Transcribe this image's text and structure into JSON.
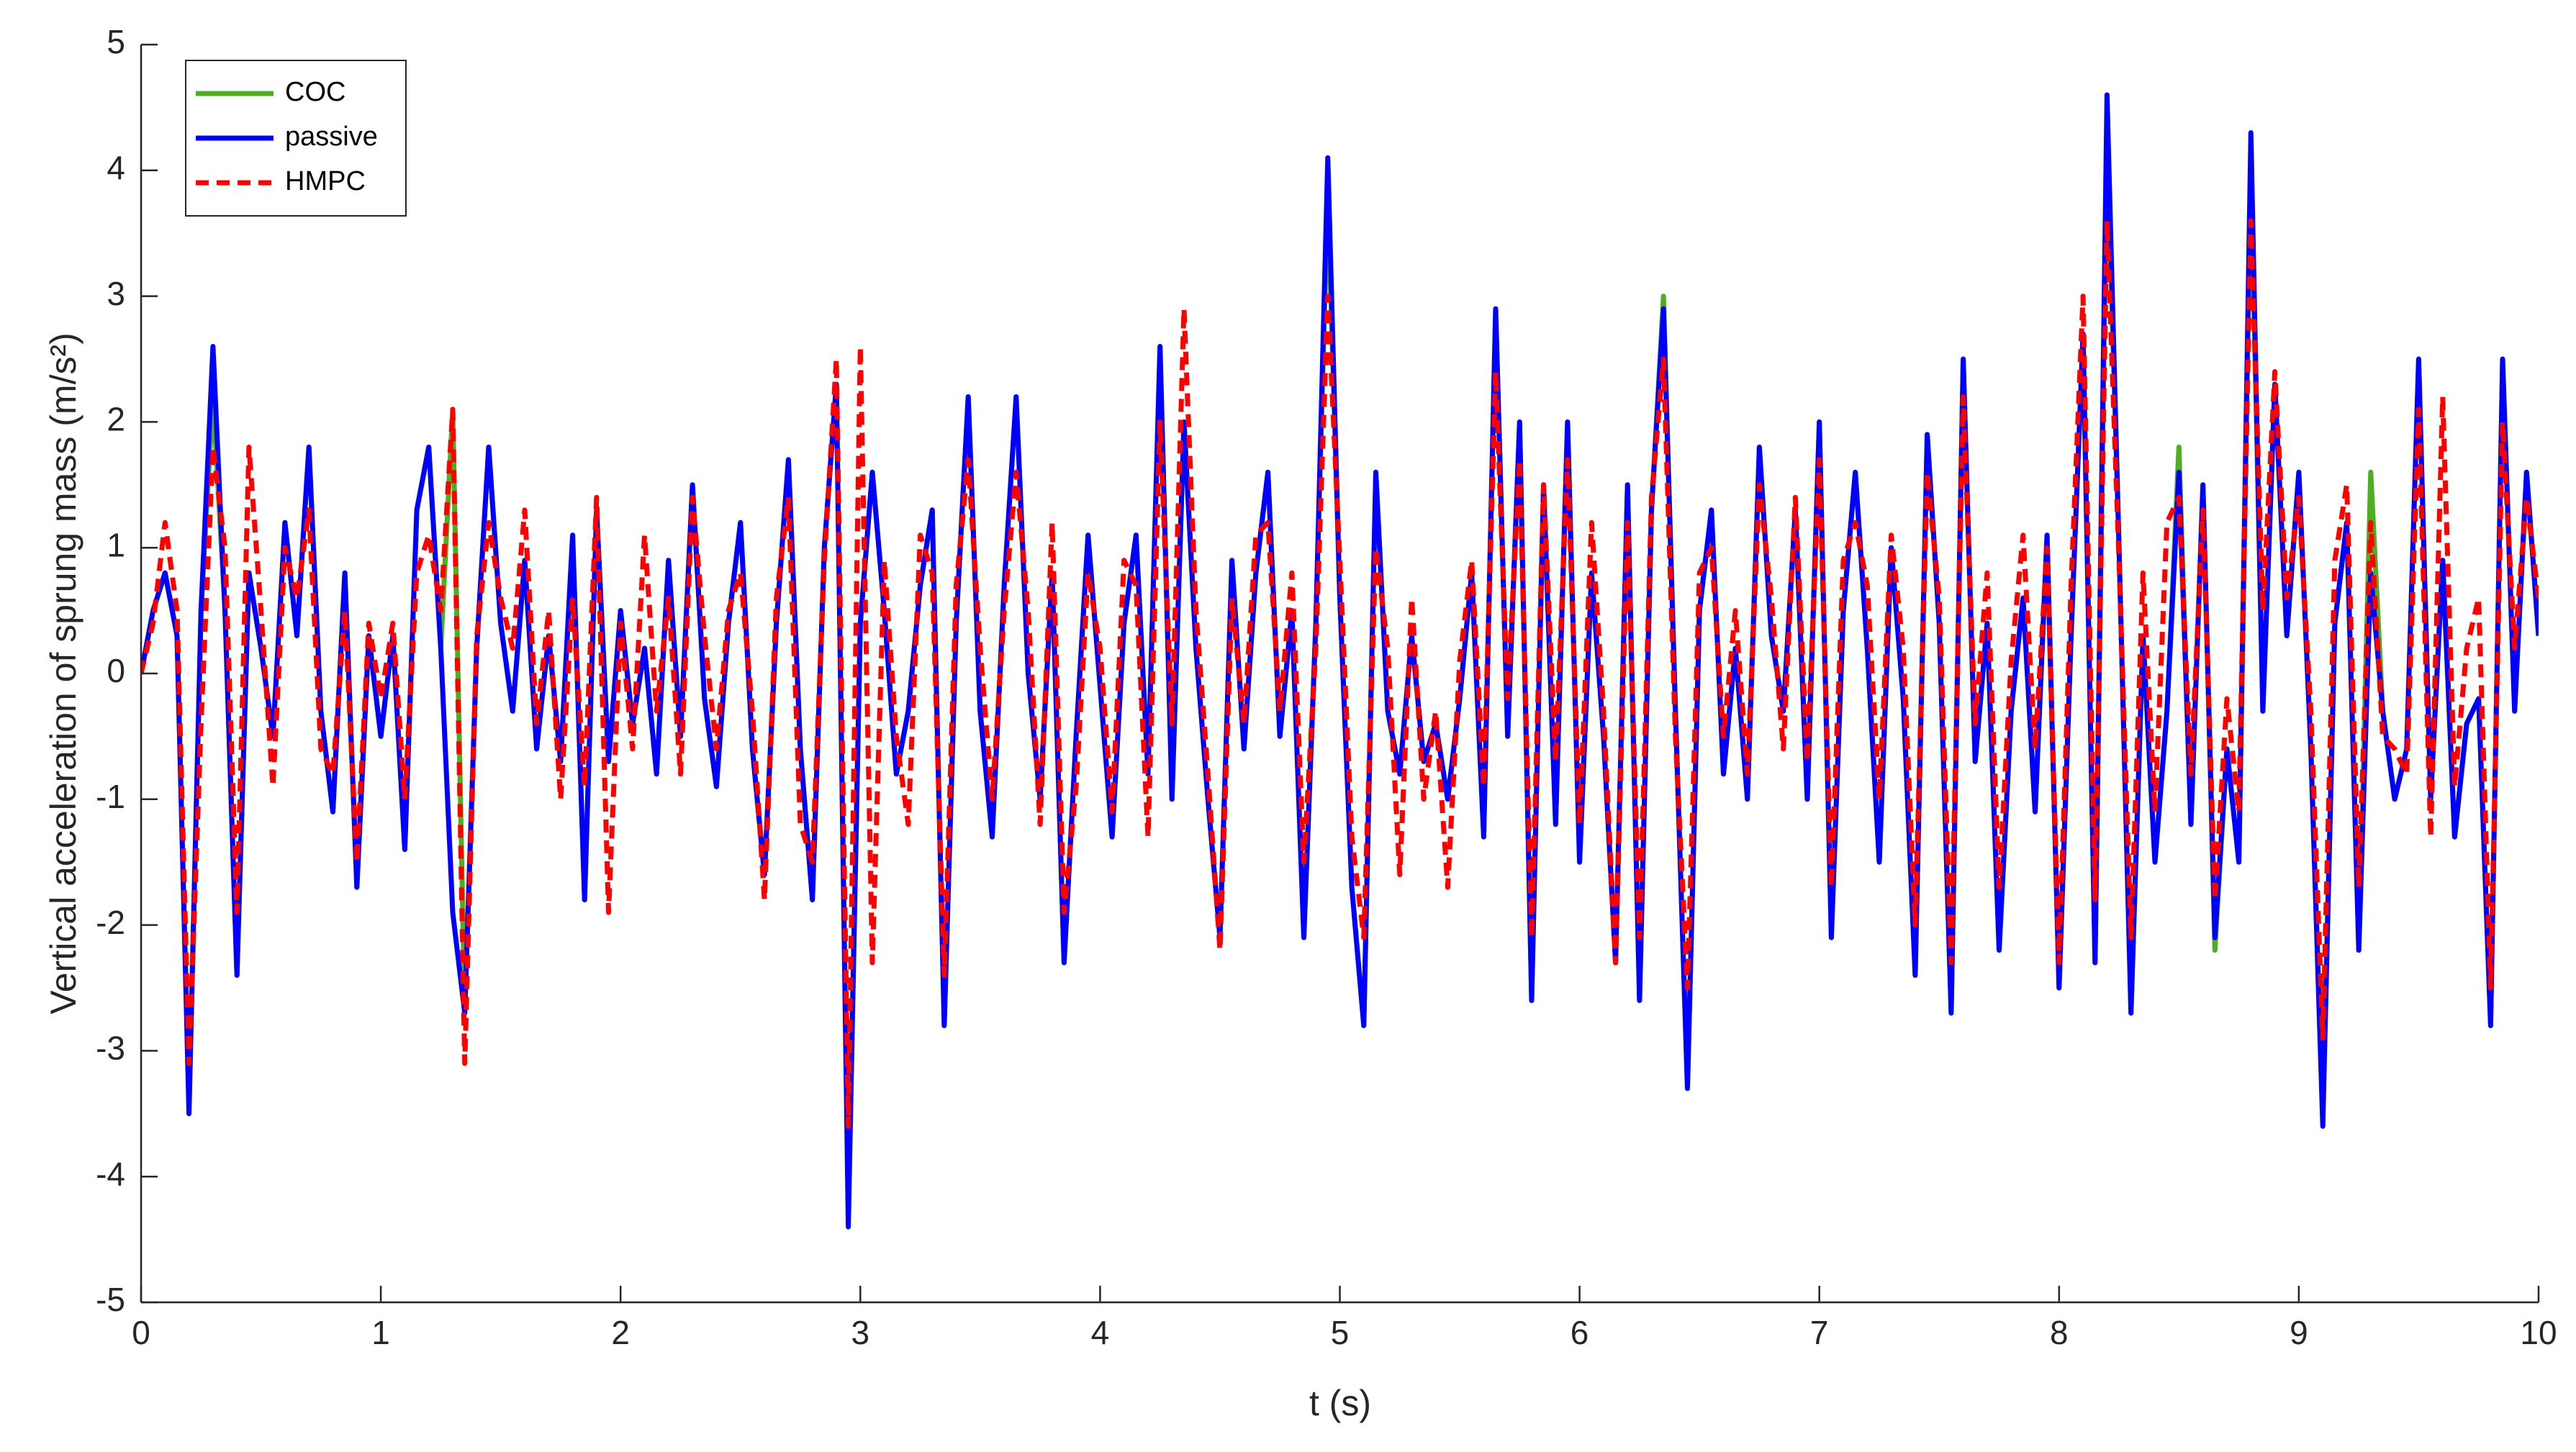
{
  "chart_data": {
    "type": "line",
    "xlabel": "t (s)",
    "ylabel": "Vertical acceleration of sprung mass (m/s²)",
    "xlim": [
      0,
      10
    ],
    "xticks": [
      0,
      1,
      2,
      3,
      4,
      5,
      6,
      7,
      8,
      9,
      10
    ],
    "ylim": [
      -5,
      5
    ],
    "yticks": [
      -5,
      -4,
      -3,
      -2,
      -1,
      0,
      1,
      2,
      3,
      4,
      5
    ],
    "grid": false,
    "legend": "upper left",
    "x": [
      0,
      0.05,
      0.1,
      0.15,
      0.2,
      0.25,
      0.3,
      0.35,
      0.4,
      0.45,
      0.5,
      0.55,
      0.6,
      0.65,
      0.7,
      0.75,
      0.8,
      0.85,
      0.9,
      0.95,
      1,
      1.05,
      1.1,
      1.15,
      1.2,
      1.25,
      1.3,
      1.35,
      1.4,
      1.45,
      1.5,
      1.55,
      1.6,
      1.65,
      1.7,
      1.75,
      1.8,
      1.85,
      1.9,
      1.95,
      2,
      2.05,
      2.1,
      2.15,
      2.2,
      2.25,
      2.3,
      2.35,
      2.4,
      2.45,
      2.5,
      2.55,
      2.6,
      2.65,
      2.7,
      2.75,
      2.8,
      2.85,
      2.9,
      2.95,
      3,
      3.05,
      3.1,
      3.15,
      3.2,
      3.25,
      3.3,
      3.35,
      3.4,
      3.45,
      3.5,
      3.55,
      3.6,
      3.65,
      3.7,
      3.75,
      3.8,
      3.85,
      3.9,
      3.95,
      4,
      4.05,
      4.1,
      4.15,
      4.2,
      4.25,
      4.3,
      4.35,
      4.4,
      4.45,
      4.5,
      4.55,
      4.6,
      4.65,
      4.7,
      4.75,
      4.8,
      4.85,
      4.9,
      4.95,
      5,
      5.05,
      5.1,
      5.15,
      5.2,
      5.25,
      5.3,
      5.35,
      5.4,
      5.45,
      5.5,
      5.55,
      5.6,
      5.65,
      5.7,
      5.75,
      5.8,
      5.85,
      5.9,
      5.95,
      6,
      6.05,
      6.1,
      6.15,
      6.2,
      6.25,
      6.3,
      6.35,
      6.4,
      6.45,
      6.5,
      6.55,
      6.6,
      6.65,
      6.7,
      6.75,
      6.8,
      6.85,
      6.9,
      6.95,
      7,
      7.05,
      7.1,
      7.15,
      7.2,
      7.25,
      7.3,
      7.35,
      7.4,
      7.45,
      7.5,
      7.55,
      7.6,
      7.65,
      7.7,
      7.75,
      7.8,
      7.85,
      7.9,
      7.95,
      8,
      8.05,
      8.1,
      8.15,
      8.2,
      8.25,
      8.3,
      8.35,
      8.4,
      8.45,
      8.5,
      8.55,
      8.6,
      8.65,
      8.7,
      8.75,
      8.8,
      8.85,
      8.9,
      8.95,
      9,
      9.05,
      9.1,
      9.15,
      9.2,
      9.25,
      9.3,
      9.35,
      9.4,
      9.45,
      9.5,
      9.55,
      9.6,
      9.65,
      9.7,
      9.75,
      9.8,
      9.85,
      9.9,
      9.95,
      10
    ],
    "series": [
      {
        "name": "COC",
        "color": "#4daf1f",
        "linestyle": "solid",
        "values": [
          0,
          0.5,
          0.8,
          0.3,
          -3.4,
          0.5,
          2.2,
          0.5,
          -2.4,
          0.8,
          0.2,
          -0.5,
          1.2,
          0.3,
          1.8,
          -0.3,
          -1.1,
          0.8,
          -1.7,
          0.3,
          -0.5,
          0.3,
          -1.4,
          1.3,
          1.8,
          0.2,
          2.1,
          -2.7,
          0.2,
          1.8,
          0.4,
          -0.3,
          0.9,
          -0.6,
          0.3,
          -0.7,
          1.1,
          -1.8,
          1.3,
          -0.7,
          0.5,
          -0.4,
          0.2,
          -0.8,
          0.9,
          -0.5,
          1.5,
          -0.2,
          -0.9,
          0.4,
          1.2,
          -0.6,
          -1.6,
          0.4,
          1.7,
          -0.6,
          -1.8,
          1.0,
          2.3,
          -4.2,
          0.4,
          1.6,
          0.5,
          -0.8,
          -0.3,
          0.7,
          1.3,
          -2.8,
          0.4,
          2.2,
          -0.3,
          -1.3,
          0.7,
          2.2,
          0.0,
          -1.0,
          0.8,
          -2.3,
          -0.5,
          1.1,
          -0.1,
          -1.3,
          0.4,
          1.1,
          -0.8,
          2.6,
          -1.0,
          2.0,
          0.2,
          -1.0,
          -2.1,
          0.9,
          -0.6,
          0.8,
          1.6,
          -0.5,
          0.5,
          -2.1,
          0.4,
          3.8,
          0.6,
          -1.7,
          -2.8,
          1.6,
          -0.3,
          -0.8,
          0.3,
          -0.7,
          -0.4,
          -1.0,
          -0.2,
          0.8,
          -1.3,
          2.9,
          -0.5,
          2.0,
          -2.6,
          1.5,
          -1.2,
          2.0,
          -1.5,
          0.8,
          -0.5,
          -2.3,
          1.5,
          -2.6,
          1.3,
          3.0,
          -0.3,
          -3.3,
          0.5,
          1.3,
          -0.8,
          0.2,
          -1.0,
          1.8,
          0.3,
          -0.3,
          1.3,
          -1.0,
          2.0,
          -2.1,
          0.5,
          1.6,
          0.2,
          -1.5,
          1.0,
          -0.2,
          -2.4,
          1.9,
          0.4,
          -2.7,
          2.5,
          -0.7,
          0.4,
          -2.2,
          -0.3,
          0.6,
          -1.1,
          1.1,
          -2.5,
          0.3,
          2.7,
          -2.3,
          4.2,
          1.0,
          -2.7,
          0.3,
          -1.5,
          -0.3,
          1.8,
          -1.2,
          1.5,
          -2.2,
          -0.6,
          -1.5,
          4.0,
          -0.3,
          2.3,
          0.3,
          1.6,
          -0.6,
          -3.4,
          0.4,
          1.2,
          -2.2,
          1.6,
          -0.3,
          -1.0,
          -0.6,
          2.5,
          -1.0,
          0.9,
          -1.3,
          -0.4,
          -0.2,
          -2.8,
          2.5,
          -0.3,
          1.6,
          0.3
        ]
      },
      {
        "name": "passive",
        "color": "#0000ff",
        "linestyle": "solid",
        "values": [
          0,
          0.5,
          0.8,
          0.3,
          -3.5,
          0.5,
          2.6,
          0.5,
          -2.4,
          0.8,
          0.2,
          -0.5,
          1.2,
          0.3,
          1.8,
          -0.3,
          -1.1,
          0.8,
          -1.7,
          0.3,
          -0.5,
          0.3,
          -1.4,
          1.3,
          1.8,
          0.2,
          -1.9,
          -2.7,
          0.2,
          1.8,
          0.4,
          -0.3,
          0.9,
          -0.6,
          0.3,
          -0.7,
          1.1,
          -1.8,
          1.3,
          -0.7,
          0.5,
          -0.4,
          0.2,
          -0.8,
          0.9,
          -0.5,
          1.5,
          -0.2,
          -0.9,
          0.4,
          1.2,
          -0.6,
          -1.6,
          0.4,
          1.7,
          -0.6,
          -1.8,
          1.0,
          2.3,
          -4.4,
          0.4,
          1.6,
          0.5,
          -0.8,
          -0.3,
          0.7,
          1.3,
          -2.8,
          0.4,
          2.2,
          -0.3,
          -1.3,
          0.7,
          2.2,
          0.0,
          -1.0,
          0.8,
          -2.3,
          -0.5,
          1.1,
          -0.1,
          -1.3,
          0.4,
          1.1,
          -0.8,
          2.6,
          -1.0,
          2.0,
          0.2,
          -1.0,
          -2.1,
          0.9,
          -0.6,
          0.8,
          1.6,
          -0.5,
          0.5,
          -2.1,
          0.4,
          4.1,
          0.6,
          -1.7,
          -2.8,
          1.6,
          -0.3,
          -0.8,
          0.3,
          -0.7,
          -0.4,
          -1.0,
          -0.2,
          0.8,
          -1.3,
          2.9,
          -0.5,
          2.0,
          -2.6,
          1.5,
          -1.2,
          2.0,
          -1.5,
          0.8,
          -0.5,
          -2.3,
          1.5,
          -2.6,
          1.3,
          2.9,
          -0.3,
          -3.3,
          0.5,
          1.3,
          -0.8,
          0.2,
          -1.0,
          1.8,
          0.3,
          -0.3,
          1.3,
          -1.0,
          2.0,
          -2.1,
          0.5,
          1.6,
          0.2,
          -1.5,
          1.0,
          -0.2,
          -2.4,
          1.9,
          0.4,
          -2.7,
          2.5,
          -0.7,
          0.4,
          -2.2,
          -0.3,
          0.6,
          -1.1,
          1.1,
          -2.5,
          0.3,
          2.7,
          -2.3,
          4.6,
          1.0,
          -2.7,
          0.3,
          -1.5,
          -0.3,
          1.6,
          -1.2,
          1.5,
          -2.1,
          -0.6,
          -1.5,
          4.3,
          -0.3,
          2.3,
          0.3,
          1.6,
          -0.6,
          -3.6,
          0.4,
          1.2,
          -2.2,
          0.8,
          -0.3,
          -1.0,
          -0.6,
          2.5,
          -1.0,
          0.9,
          -1.3,
          -0.4,
          -0.2,
          -2.8,
          2.5,
          -0.3,
          1.6,
          0.3
        ]
      },
      {
        "name": "HMPC",
        "color": "#ff0000",
        "linestyle": "dashed",
        "values": [
          0,
          0.4,
          1.2,
          0.5,
          -3.1,
          -0.4,
          1.8,
          1.0,
          -1.9,
          1.8,
          0.5,
          -0.9,
          1.0,
          0.6,
          1.3,
          -0.6,
          -0.8,
          0.5,
          -1.5,
          0.4,
          -0.2,
          0.4,
          -1.0,
          0.8,
          1.1,
          0.5,
          2.1,
          -3.1,
          0.3,
          1.2,
          0.6,
          0.2,
          1.3,
          -0.4,
          0.5,
          -1.0,
          0.6,
          -0.9,
          1.4,
          -1.9,
          0.4,
          -0.6,
          1.1,
          -0.3,
          0.6,
          -0.8,
          1.4,
          0.3,
          -0.6,
          0.5,
          0.8,
          -0.3,
          -1.8,
          0.6,
          1.4,
          -1.2,
          -1.5,
          0.9,
          2.5,
          -3.6,
          2.6,
          -2.3,
          0.9,
          -0.5,
          -1.2,
          1.1,
          0.8,
          -2.4,
          0.7,
          1.7,
          0.2,
          -1.0,
          0.5,
          1.6,
          0.5,
          -1.2,
          1.2,
          -1.9,
          -0.9,
          0.8,
          0.2,
          -1.1,
          0.9,
          0.7,
          -1.3,
          2.0,
          -0.4,
          2.9,
          0.5,
          -0.8,
          -2.2,
          0.6,
          -0.4,
          1.1,
          1.2,
          -0.3,
          0.8,
          -1.5,
          0.2,
          3.0,
          0.9,
          -1.3,
          -2.1,
          1.0,
          0.2,
          -1.6,
          0.6,
          -1.0,
          -0.3,
          -1.7,
          0.1,
          0.9,
          -0.9,
          2.4,
          -0.2,
          1.7,
          -2.1,
          1.5,
          -0.7,
          1.7,
          -1.2,
          1.2,
          -0.3,
          -2.3,
          1.2,
          -2.1,
          1.4,
          2.5,
          -0.5,
          -2.5,
          0.8,
          1.0,
          -0.5,
          0.5,
          -0.8,
          1.5,
          0.6,
          -0.6,
          1.4,
          -0.7,
          1.7,
          -1.7,
          0.9,
          1.2,
          0.7,
          -1.0,
          1.1,
          0.2,
          -2.0,
          1.6,
          0.6,
          -2.3,
          2.2,
          -0.4,
          0.8,
          -1.7,
          0.1,
          1.1,
          -0.6,
          1.0,
          -2.3,
          0.7,
          3.0,
          -1.8,
          3.6,
          0.9,
          -2.1,
          0.8,
          -1.1,
          1.2,
          1.4,
          -0.8,
          1.3,
          -1.8,
          -0.2,
          -1.1,
          3.6,
          0.5,
          2.4,
          0.6,
          1.4,
          -0.3,
          -2.9,
          0.9,
          1.5,
          -1.7,
          1.2,
          -0.5,
          -0.6,
          -0.8,
          2.1,
          -1.3,
          2.2,
          -0.9,
          0.2,
          0.6,
          -2.5,
          2.0,
          0.2,
          1.4,
          0.6
        ]
      }
    ]
  }
}
